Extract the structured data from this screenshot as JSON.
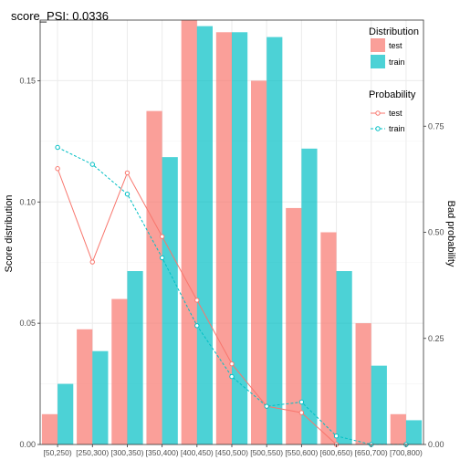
{
  "chart_data": {
    "type": "bar+line",
    "title": "score_PSI: 0.0336",
    "xlabel": "",
    "ylabel": "Score distribution",
    "y2label": "Bad probability",
    "categories": [
      "[50,250)",
      "[250,300)",
      "[300,350)",
      "[350,400)",
      "[400,450)",
      "[450,500)",
      "[500,550)",
      "[550,600)",
      "[600,650)",
      "[650,700)",
      "[700,800)"
    ],
    "ylim": [
      0,
      0.175
    ],
    "y2lim": [
      0,
      1.0
    ],
    "yticks": [
      0.0,
      0.05,
      0.1,
      0.15
    ],
    "ytick_labels": [
      "0.00",
      "0.05",
      "0.10",
      "0.15"
    ],
    "y2ticks": [
      0.0,
      0.25,
      0.5,
      0.75
    ],
    "y2tick_labels": [
      "0.00",
      "0.25",
      "0.50",
      "0.75"
    ],
    "grid": true,
    "bar_series": [
      {
        "name": "test",
        "color": "#F8766D",
        "values": [
          0.0125,
          0.0475,
          0.06,
          0.1375,
          0.1775,
          0.17,
          0.15,
          0.0975,
          0.0875,
          0.05,
          0.0125
        ]
      },
      {
        "name": "train",
        "color": "#00BFC4",
        "values": [
          0.025,
          0.0385,
          0.0715,
          0.1185,
          0.1725,
          0.17,
          0.168,
          0.122,
          0.0715,
          0.0325,
          0.01
        ]
      }
    ],
    "line_series": [
      {
        "name": "test",
        "color": "#F8766D",
        "dash": "solid",
        "values": [
          0.65,
          0.43,
          0.64,
          0.49,
          0.34,
          0.19,
          0.09,
          0.075,
          0.0,
          0.0,
          0.0
        ]
      },
      {
        "name": "train",
        "color": "#00BFC4",
        "dash": "dashed",
        "values": [
          0.7,
          0.66,
          0.59,
          0.44,
          0.28,
          0.16,
          0.09,
          0.1,
          0.02,
          0.0,
          0.0
        ]
      }
    ],
    "legend": {
      "placement": "top-right",
      "groups": [
        {
          "title": "Distribution",
          "items": [
            "test",
            "train"
          ]
        },
        {
          "title": "Probability",
          "items": [
            "test",
            "train"
          ]
        }
      ]
    }
  }
}
